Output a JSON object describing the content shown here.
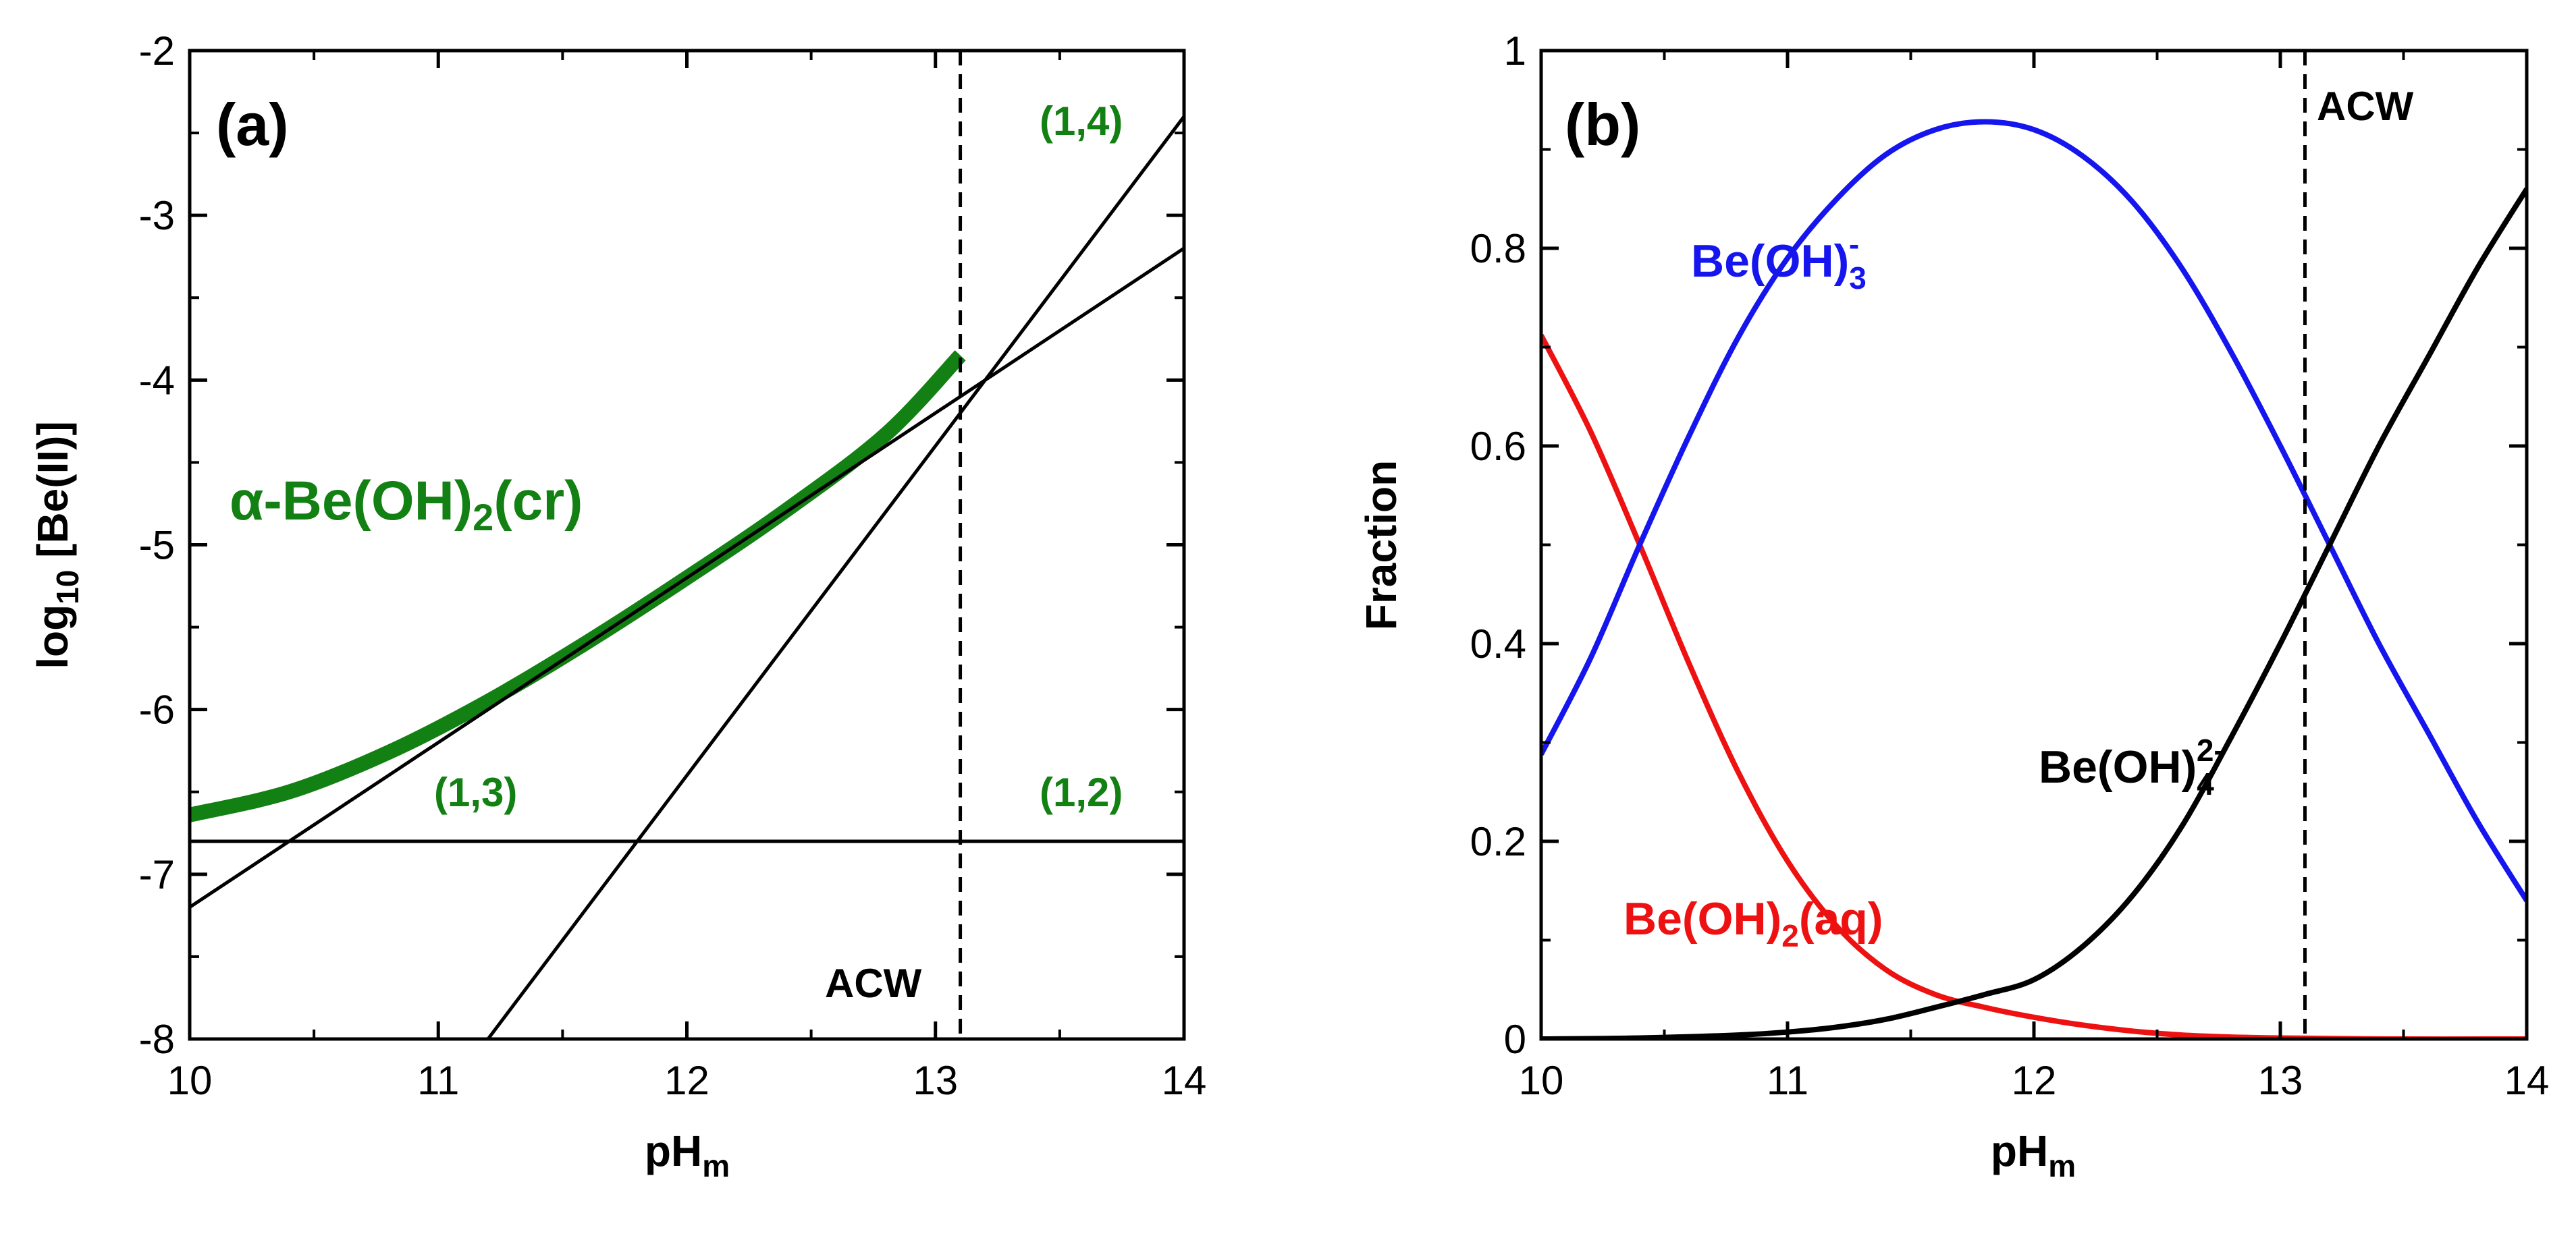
{
  "chart_data": [
    {
      "panel_label": "(a)",
      "type": "line",
      "xlabel": "pH",
      "xlabel_sub": "m",
      "ylabel_prefix": "log",
      "ylabel_sub": "10",
      "ylabel_suffix": " [Be(II)]",
      "xlim": [
        10,
        14
      ],
      "ylim": [
        -8,
        -2
      ],
      "xticks": [
        10,
        11,
        12,
        13,
        14
      ],
      "xtick_labels": [
        "10",
        "11",
        "12",
        "13",
        "14"
      ],
      "yticks": [
        -8,
        -7,
        -6,
        -5,
        -4,
        -3,
        -2
      ],
      "ytick_labels": [
        "-8",
        "-7",
        "-6",
        "-5",
        "-4",
        "-3",
        "-2"
      ],
      "grid": false,
      "series": [
        {
          "name": "α-Be(OH)2(cr)",
          "label_main": "α-Be(OH)",
          "label_sub": "2",
          "label_suffix": "(cr)",
          "color": "#138013",
          "x": [
            10.0,
            10.4,
            10.8,
            11.2,
            11.6,
            12.0,
            12.4,
            12.8,
            13.1
          ],
          "y": [
            -6.64,
            -6.5,
            -6.26,
            -5.95,
            -5.59,
            -5.2,
            -4.79,
            -4.33,
            -3.85
          ]
        },
        {
          "name": "(1,2)",
          "color": "#000000",
          "x": [
            10,
            14
          ],
          "y": [
            -6.8,
            -6.8
          ]
        },
        {
          "name": "(1,3)",
          "color": "#000000",
          "x": [
            10,
            14
          ],
          "y": [
            -7.2,
            -3.2
          ]
        },
        {
          "name": "(1,4)",
          "color": "#000000",
          "x": [
            11.2,
            14
          ],
          "y": [
            -8.0,
            -2.4
          ]
        }
      ],
      "vline": {
        "x": 13.1,
        "label": "ACW"
      },
      "annotations": [
        {
          "text": "(1,3)",
          "color": "#138013"
        },
        {
          "text": "(1,2)",
          "color": "#138013"
        },
        {
          "text": "(1,4)",
          "color": "#138013"
        }
      ]
    },
    {
      "panel_label": "(b)",
      "type": "line",
      "xlabel": "pH",
      "xlabel_sub": "m",
      "ylabel": "Fraction",
      "xlim": [
        10,
        14
      ],
      "ylim": [
        0,
        1
      ],
      "xticks": [
        10,
        11,
        12,
        13,
        14
      ],
      "xtick_labels": [
        "10",
        "11",
        "12",
        "13",
        "14"
      ],
      "yticks": [
        0,
        0.2,
        0.4,
        0.6,
        0.8,
        1
      ],
      "ytick_labels": [
        "0",
        "0.2",
        "0.4",
        "0.6",
        "0.8",
        "1"
      ],
      "grid": false,
      "series": [
        {
          "name": "Be(OH)2(aq)",
          "label_main": "Be(OH)",
          "label_sub": "2",
          "label_suffix": "(aq)",
          "color": "#ee1111",
          "x": [
            10.0,
            10.2,
            10.4,
            10.6,
            10.8,
            11.0,
            11.2,
            11.4,
            11.6,
            11.8,
            12.0,
            12.2,
            12.4,
            12.6,
            12.8,
            13.0,
            13.4,
            14.0
          ],
          "y": [
            0.712,
            0.615,
            0.5,
            0.38,
            0.27,
            0.18,
            0.114,
            0.07,
            0.045,
            0.032,
            0.022,
            0.014,
            0.008,
            0.004,
            0.002,
            0.001,
            0.0,
            0.0
          ]
        },
        {
          "name": "Be(OH)3-",
          "label_main": "Be(OH)",
          "label_sub": "3",
          "label_sup": "-",
          "color": "#1515ee",
          "x": [
            10.0,
            10.2,
            10.4,
            10.6,
            10.8,
            11.0,
            11.2,
            11.4,
            11.6,
            11.8,
            12.0,
            12.2,
            12.4,
            12.6,
            12.8,
            13.0,
            13.2,
            13.4,
            13.6,
            13.8,
            14.0
          ],
          "y": [
            0.288,
            0.385,
            0.5,
            0.61,
            0.71,
            0.79,
            0.85,
            0.895,
            0.92,
            0.928,
            0.92,
            0.893,
            0.847,
            0.78,
            0.695,
            0.6,
            0.5,
            0.4,
            0.31,
            0.22,
            0.14
          ]
        },
        {
          "name": "Be(OH)4 2-",
          "label_main": "Be(OH)",
          "label_sub": "4",
          "label_sup": "2-",
          "color": "#000000",
          "x": [
            10.0,
            10.4,
            10.8,
            11.0,
            11.2,
            11.4,
            11.6,
            11.8,
            12.0,
            12.2,
            12.4,
            12.6,
            12.8,
            13.0,
            13.2,
            13.4,
            13.6,
            13.8,
            14.0
          ],
          "y": [
            0.0,
            0.001,
            0.004,
            0.007,
            0.012,
            0.02,
            0.032,
            0.045,
            0.06,
            0.094,
            0.145,
            0.215,
            0.305,
            0.4,
            0.5,
            0.6,
            0.69,
            0.78,
            0.86
          ]
        }
      ],
      "vline": {
        "x": 13.1,
        "label": "ACW"
      }
    }
  ]
}
